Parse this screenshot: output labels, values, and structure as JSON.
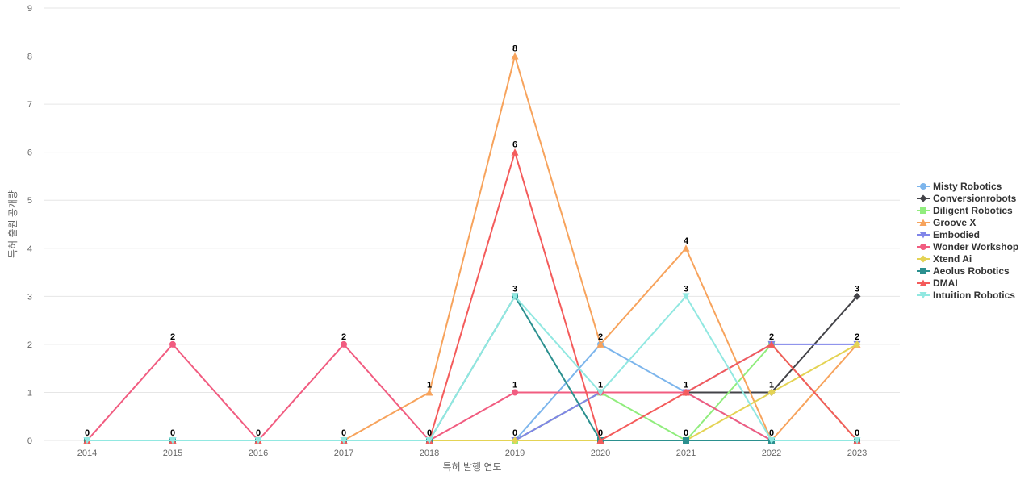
{
  "chart_data": {
    "type": "line",
    "title": "",
    "xlabel": "특허 발행 연도",
    "ylabel": "특허 출원 공개량",
    "categories": [
      "2014",
      "2015",
      "2016",
      "2017",
      "2018",
      "2019",
      "2020",
      "2021",
      "2022",
      "2023"
    ],
    "ylim": [
      0,
      9
    ],
    "yticks": [
      0,
      1,
      2,
      3,
      4,
      5,
      6,
      7,
      8,
      9
    ],
    "grid": true,
    "legend_position": "right",
    "series": [
      {
        "name": "Misty Robotics",
        "color": "#7cb5ec",
        "marker": "circle",
        "values": [
          0,
          0,
          0,
          0,
          0,
          0,
          2,
          1,
          0,
          0
        ]
      },
      {
        "name": "Conversionrobots",
        "color": "#434348",
        "marker": "diamond",
        "values": [
          0,
          0,
          0,
          0,
          0,
          0,
          1,
          1,
          1,
          3
        ]
      },
      {
        "name": "Diligent Robotics",
        "color": "#90ed7d",
        "marker": "square",
        "values": [
          0,
          0,
          0,
          0,
          0,
          0,
          1,
          0,
          2,
          0
        ]
      },
      {
        "name": "Groove X",
        "color": "#f7a35c",
        "marker": "triangle",
        "values": [
          0,
          0,
          0,
          0,
          1,
          8,
          2,
          4,
          0,
          2
        ]
      },
      {
        "name": "Embodied",
        "color": "#8085e9",
        "marker": "triangle-down",
        "values": [
          0,
          0,
          0,
          0,
          0,
          0,
          1,
          1,
          2,
          2
        ]
      },
      {
        "name": "Wonder Workshop",
        "color": "#f15c80",
        "marker": "circle",
        "values": [
          0,
          2,
          0,
          2,
          0,
          1,
          1,
          1,
          0,
          0
        ]
      },
      {
        "name": "Xtend Ai",
        "color": "#e4d354",
        "marker": "diamond",
        "values": [
          0,
          0,
          0,
          0,
          0,
          0,
          0,
          0,
          1,
          2
        ]
      },
      {
        "name": "Aeolus Robotics",
        "color": "#2b908f",
        "marker": "square",
        "values": [
          0,
          0,
          0,
          0,
          0,
          3,
          0,
          0,
          0,
          0
        ]
      },
      {
        "name": "DMAI",
        "color": "#f45b5b",
        "marker": "triangle",
        "values": [
          0,
          0,
          0,
          0,
          0,
          6,
          0,
          1,
          2,
          0
        ]
      },
      {
        "name": "Intuition Robotics",
        "color": "#91e8e1",
        "marker": "triangle-down",
        "values": [
          0,
          0,
          0,
          0,
          0,
          3,
          1,
          3,
          0,
          0
        ]
      }
    ],
    "data_labels": [
      {
        "category": "2014",
        "text": "0"
      },
      {
        "category": "2015",
        "text": "2",
        "value": 2
      },
      {
        "category": "2015",
        "text": "0",
        "value": 0
      },
      {
        "category": "2016",
        "text": "0",
        "value": 0
      },
      {
        "category": "2017",
        "text": "2",
        "value": 2
      },
      {
        "category": "2017",
        "text": "0",
        "value": 0
      },
      {
        "category": "2018",
        "text": "1",
        "value": 1
      },
      {
        "category": "2018",
        "text": "0",
        "value": 0
      },
      {
        "category": "2019",
        "text": "8",
        "value": 8
      },
      {
        "category": "2019",
        "text": "6",
        "value": 6
      },
      {
        "category": "2019",
        "text": "3",
        "value": 3
      },
      {
        "category": "2019",
        "text": "1",
        "value": 1
      },
      {
        "category": "2019",
        "text": "0",
        "value": 0
      },
      {
        "category": "2020",
        "text": "2",
        "value": 2
      },
      {
        "category": "2020",
        "text": "1",
        "value": 1
      },
      {
        "category": "2020",
        "text": "0",
        "value": 0
      },
      {
        "category": "2021",
        "text": "4",
        "value": 4
      },
      {
        "category": "2021",
        "text": "3",
        "value": 3
      },
      {
        "category": "2021",
        "text": "1",
        "value": 1
      },
      {
        "category": "2021",
        "text": "0",
        "value": 0
      },
      {
        "category": "2022",
        "text": "2",
        "value": 2
      },
      {
        "category": "2022",
        "text": "1",
        "value": 1
      },
      {
        "category": "2022",
        "text": "0",
        "value": 0
      },
      {
        "category": "2023",
        "text": "3",
        "value": 3
      },
      {
        "category": "2023",
        "text": "2",
        "value": 2
      },
      {
        "category": "2023",
        "text": "0",
        "value": 0
      }
    ]
  }
}
